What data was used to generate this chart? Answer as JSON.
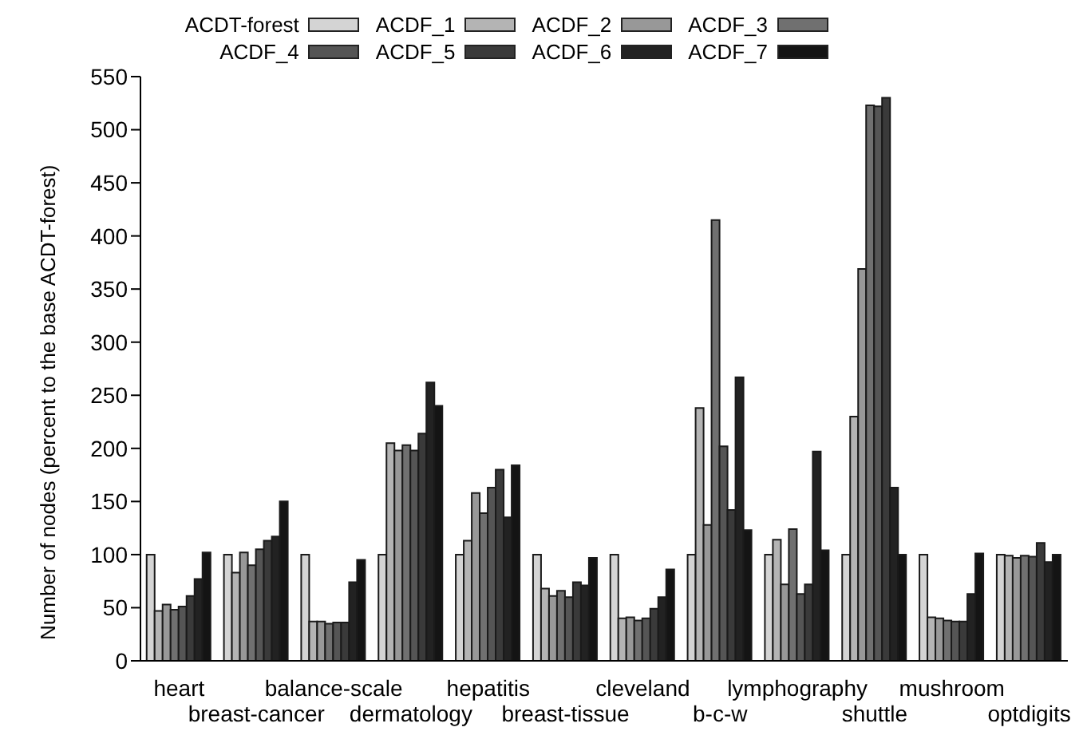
{
  "chart_data": {
    "type": "bar",
    "ylabel": "Number of nodes (percent to the base ACDT-forest)",
    "categories": [
      "heart",
      "breast-cancer",
      "balance-scale",
      "dermatology",
      "hepatitis",
      "breast-tissue",
      "cleveland",
      "b-c-w",
      "lymphography",
      "shuttle",
      "mushroom",
      "optdigits"
    ],
    "series": [
      {
        "name": "ACDT-forest",
        "color": "#d4d4d4",
        "values": [
          100,
          100,
          100,
          100,
          100,
          100,
          100,
          100,
          100,
          100,
          100,
          100
        ]
      },
      {
        "name": "ACDF_1",
        "color": "#b4b4b4",
        "values": [
          47,
          83,
          37,
          205,
          113,
          68,
          40,
          238,
          114,
          230,
          41,
          99
        ]
      },
      {
        "name": "ACDF_2",
        "color": "#989898",
        "values": [
          53,
          102,
          37,
          198,
          158,
          61,
          41,
          128,
          72,
          369,
          40,
          97
        ]
      },
      {
        "name": "ACDF_3",
        "color": "#707070",
        "values": [
          48,
          90,
          35,
          203,
          139,
          66,
          38,
          415,
          124,
          523,
          38,
          99
        ]
      },
      {
        "name": "ACDF_4",
        "color": "#555555",
        "values": [
          51,
          105,
          36,
          198,
          163,
          60,
          40,
          202,
          63,
          522,
          37,
          98
        ]
      },
      {
        "name": "ACDF_5",
        "color": "#3a3a3a",
        "values": [
          61,
          113,
          36,
          214,
          180,
          74,
          49,
          142,
          72,
          530,
          37,
          111
        ]
      },
      {
        "name": "ACDF_6",
        "color": "#222222",
        "values": [
          77,
          117,
          74,
          262,
          135,
          71,
          60,
          267,
          197,
          163,
          63,
          93
        ]
      },
      {
        "name": "ACDF_7",
        "color": "#141414",
        "values": [
          102,
          150,
          95,
          240,
          184,
          97,
          86,
          123,
          104,
          100,
          101,
          100
        ]
      }
    ],
    "ylim": [
      0,
      550
    ],
    "yticks": [
      0,
      50,
      100,
      150,
      200,
      250,
      300,
      350,
      400,
      450,
      500,
      550
    ],
    "grid": false,
    "legend": "top"
  }
}
